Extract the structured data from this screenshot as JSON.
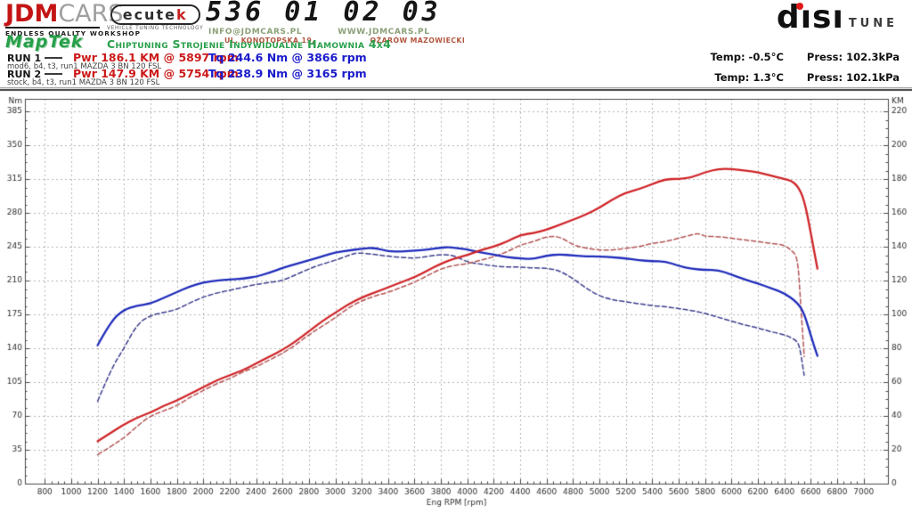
{
  "header": {
    "brand_red": "JDM",
    "brand_gray": "CARS",
    "brand_tagline": "ENDLESS QUALITY WORKSHOP",
    "ecutek_name": "ecutek",
    "ecutek_name_main": "ecute",
    "ecutek_name_k": "k",
    "ecutek_tagline": "VEHICLE TUNING TECHNOLOGY",
    "phone": "536 01 02 03",
    "email": "INFO@JDMCARS.PL",
    "website": "WWW.JDMCARS.PL",
    "address_street": "UL. KONOTOPSKA 19,",
    "address_city": "OŻARÓW MAZOWIECKI",
    "maptek": "MapTek",
    "services": "Chiptuning Strojenie Indywidualne Hamownia 4x4",
    "disi": "dısı",
    "tune": "TUNE"
  },
  "runs": [
    {
      "label": "RUN 1",
      "power": "Pwr 186.1 KM @ 5897 rpm",
      "torque": "Tq 244.6 Nm @ 3866 rpm",
      "description": "mod6, b4, t3, run1 MAZDA 3 BN 120 FSL",
      "temp": "Temp: -0.5°C",
      "press": "Press: 102.3kPa"
    },
    {
      "label": "RUN 2",
      "power": "Pwr 147.9 KM @ 5754 rpm",
      "torque": "Tq 238.9 Nm @ 3165 rpm",
      "description": "stock, b4, t3, run1 MAZDA 3 BN 120 FSL",
      "temp": "Temp: 1.3°C",
      "press": "Press: 102.1kPa"
    }
  ],
  "chart_data": {
    "type": "line",
    "xlabel": "Eng RPM [rpm]",
    "x_min": 650,
    "x_max": 7184,
    "x_tick_min": 800,
    "x_tick_max": 7000,
    "x_tick_step": 200,
    "x_minor_step": 50,
    "left_axis": {
      "label": "Nm",
      "min": 0,
      "max": 385,
      "tick_step": 35,
      "minor_step": 8.75
    },
    "right_axis": {
      "label": "KM",
      "min": 0,
      "max": 220,
      "tick_step": 20,
      "minor_step": 5
    },
    "grid": true,
    "grid_color": "#b4b4b4",
    "frame_color": "#4a4a4a",
    "peaks": {
      "run1_power_km": 186.1,
      "run1_power_rpm": 5897,
      "run1_torque_nm": 244.6,
      "run1_torque_rpm": 3866,
      "run2_power_km": 147.9,
      "run2_power_rpm": 5754,
      "run2_torque_nm": 238.9,
      "run2_torque_rpm": 3165
    },
    "series": [
      {
        "name": "RUN 2 Torque (stock)",
        "axis": "left",
        "unit": "Nm",
        "color": "#3d3d8f",
        "dash": true,
        "width": 1.5,
        "points": [
          [
            1200,
            85
          ],
          [
            1300,
            118
          ],
          [
            1400,
            140
          ],
          [
            1500,
            165
          ],
          [
            1600,
            174
          ],
          [
            1700,
            177
          ],
          [
            1800,
            180
          ],
          [
            1900,
            187
          ],
          [
            2000,
            193
          ],
          [
            2100,
            197
          ],
          [
            2200,
            200
          ],
          [
            2300,
            203
          ],
          [
            2400,
            206
          ],
          [
            2500,
            208
          ],
          [
            2600,
            210
          ],
          [
            2700,
            216
          ],
          [
            2800,
            222
          ],
          [
            2900,
            227
          ],
          [
            3000,
            231
          ],
          [
            3100,
            236
          ],
          [
            3165,
            238.9
          ],
          [
            3300,
            237
          ],
          [
            3400,
            235
          ],
          [
            3500,
            234
          ],
          [
            3600,
            233
          ],
          [
            3700,
            235
          ],
          [
            3800,
            237
          ],
          [
            3900,
            236
          ],
          [
            4000,
            229
          ],
          [
            4100,
            227
          ],
          [
            4200,
            225
          ],
          [
            4300,
            224
          ],
          [
            4400,
            224
          ],
          [
            4500,
            223
          ],
          [
            4600,
            223
          ],
          [
            4700,
            220
          ],
          [
            4800,
            212
          ],
          [
            4900,
            202
          ],
          [
            5000,
            194
          ],
          [
            5100,
            190
          ],
          [
            5200,
            188
          ],
          [
            5300,
            186
          ],
          [
            5400,
            184
          ],
          [
            5500,
            183
          ],
          [
            5600,
            181
          ],
          [
            5700,
            179
          ],
          [
            5800,
            176
          ],
          [
            5900,
            172
          ],
          [
            6000,
            168
          ],
          [
            6100,
            164
          ],
          [
            6200,
            161
          ],
          [
            6300,
            157
          ],
          [
            6400,
            154
          ],
          [
            6450,
            151
          ],
          [
            6500,
            147
          ],
          [
            6520,
            138
          ],
          [
            6550,
            112
          ]
        ]
      },
      {
        "name": "RUN 2 Power (stock)",
        "axis": "right",
        "unit": "KM",
        "color": "#b35353",
        "dash": true,
        "width": 1.5,
        "points": [
          [
            1200,
            17
          ],
          [
            1300,
            22
          ],
          [
            1400,
            27
          ],
          [
            1500,
            34
          ],
          [
            1600,
            40
          ],
          [
            1700,
            43
          ],
          [
            1800,
            46
          ],
          [
            1900,
            51
          ],
          [
            2000,
            55
          ],
          [
            2100,
            59
          ],
          [
            2200,
            62
          ],
          [
            2300,
            66
          ],
          [
            2400,
            69
          ],
          [
            2500,
            73
          ],
          [
            2600,
            77
          ],
          [
            2700,
            82
          ],
          [
            2800,
            88
          ],
          [
            2900,
            93
          ],
          [
            3000,
            98
          ],
          [
            3100,
            104
          ],
          [
            3200,
            108
          ],
          [
            3300,
            111
          ],
          [
            3400,
            113
          ],
          [
            3500,
            116
          ],
          [
            3600,
            119
          ],
          [
            3700,
            123
          ],
          [
            3800,
            127
          ],
          [
            3900,
            129
          ],
          [
            4000,
            130
          ],
          [
            4100,
            132
          ],
          [
            4200,
            134
          ],
          [
            4300,
            137
          ],
          [
            4400,
            141
          ],
          [
            4500,
            143
          ],
          [
            4600,
            146
          ],
          [
            4700,
            146
          ],
          [
            4800,
            141
          ],
          [
            4900,
            139
          ],
          [
            5000,
            138
          ],
          [
            5100,
            138
          ],
          [
            5200,
            139
          ],
          [
            5300,
            140
          ],
          [
            5400,
            142
          ],
          [
            5500,
            143
          ],
          [
            5600,
            145
          ],
          [
            5700,
            147
          ],
          [
            5754,
            147.9
          ],
          [
            5800,
            146
          ],
          [
            5900,
            146
          ],
          [
            6000,
            145
          ],
          [
            6100,
            144
          ],
          [
            6200,
            143
          ],
          [
            6300,
            142
          ],
          [
            6400,
            141
          ],
          [
            6450,
            138
          ],
          [
            6500,
            134
          ],
          [
            6520,
            110
          ],
          [
            6550,
            75
          ]
        ]
      },
      {
        "name": "RUN 1 Torque (mod6)",
        "axis": "left",
        "unit": "Nm",
        "color": "#1f2cba",
        "dash": false,
        "width": 2.3,
        "points": [
          [
            1200,
            143
          ],
          [
            1300,
            168
          ],
          [
            1400,
            180
          ],
          [
            1500,
            184
          ],
          [
            1600,
            186
          ],
          [
            1700,
            192
          ],
          [
            1800,
            198
          ],
          [
            1900,
            204
          ],
          [
            2000,
            208
          ],
          [
            2100,
            210
          ],
          [
            2200,
            211
          ],
          [
            2300,
            212
          ],
          [
            2400,
            214
          ],
          [
            2500,
            218
          ],
          [
            2600,
            223
          ],
          [
            2700,
            227
          ],
          [
            2800,
            231
          ],
          [
            2900,
            235
          ],
          [
            3000,
            239
          ],
          [
            3100,
            241
          ],
          [
            3200,
            243
          ],
          [
            3300,
            244
          ],
          [
            3400,
            240
          ],
          [
            3500,
            240
          ],
          [
            3600,
            241
          ],
          [
            3700,
            242
          ],
          [
            3800,
            244
          ],
          [
            3866,
            244.6
          ],
          [
            3950,
            243
          ],
          [
            4000,
            242
          ],
          [
            4100,
            239
          ],
          [
            4200,
            237
          ],
          [
            4300,
            234
          ],
          [
            4400,
            233
          ],
          [
            4500,
            232
          ],
          [
            4600,
            236
          ],
          [
            4700,
            237
          ],
          [
            4800,
            236
          ],
          [
            4900,
            235
          ],
          [
            5000,
            235
          ],
          [
            5100,
            234
          ],
          [
            5200,
            233
          ],
          [
            5300,
            231
          ],
          [
            5400,
            230
          ],
          [
            5500,
            230
          ],
          [
            5600,
            225
          ],
          [
            5700,
            222
          ],
          [
            5800,
            221
          ],
          [
            5900,
            221
          ],
          [
            6000,
            216
          ],
          [
            6100,
            211
          ],
          [
            6200,
            207
          ],
          [
            6300,
            202
          ],
          [
            6400,
            197
          ],
          [
            6500,
            187
          ],
          [
            6550,
            176
          ],
          [
            6600,
            153
          ],
          [
            6650,
            132
          ]
        ]
      },
      {
        "name": "RUN 1 Power (mod6)",
        "axis": "right",
        "unit": "KM",
        "color": "#cf2428",
        "dash": false,
        "width": 2.3,
        "points": [
          [
            1200,
            25
          ],
          [
            1300,
            30
          ],
          [
            1400,
            35
          ],
          [
            1500,
            39
          ],
          [
            1600,
            42
          ],
          [
            1700,
            46
          ],
          [
            1800,
            49
          ],
          [
            1900,
            53
          ],
          [
            2000,
            57
          ],
          [
            2100,
            61
          ],
          [
            2200,
            64
          ],
          [
            2300,
            67
          ],
          [
            2400,
            71
          ],
          [
            2500,
            75
          ],
          [
            2600,
            79
          ],
          [
            2700,
            84
          ],
          [
            2800,
            90
          ],
          [
            2900,
            96
          ],
          [
            3000,
            101
          ],
          [
            3100,
            106
          ],
          [
            3200,
            110
          ],
          [
            3300,
            113
          ],
          [
            3400,
            116
          ],
          [
            3500,
            119
          ],
          [
            3600,
            122
          ],
          [
            3700,
            126
          ],
          [
            3800,
            130
          ],
          [
            3900,
            133
          ],
          [
            4000,
            135
          ],
          [
            4100,
            138
          ],
          [
            4200,
            140
          ],
          [
            4300,
            143
          ],
          [
            4400,
            147
          ],
          [
            4500,
            148
          ],
          [
            4600,
            150
          ],
          [
            4700,
            153
          ],
          [
            4800,
            156
          ],
          [
            4900,
            159
          ],
          [
            5000,
            163
          ],
          [
            5100,
            168
          ],
          [
            5200,
            172
          ],
          [
            5300,
            174
          ],
          [
            5400,
            177
          ],
          [
            5500,
            180
          ],
          [
            5600,
            180
          ],
          [
            5700,
            181
          ],
          [
            5800,
            184
          ],
          [
            5900,
            186
          ],
          [
            6000,
            186
          ],
          [
            6100,
            185
          ],
          [
            6200,
            184
          ],
          [
            6300,
            182
          ],
          [
            6400,
            180
          ],
          [
            6450,
            179
          ],
          [
            6500,
            176
          ],
          [
            6550,
            168
          ],
          [
            6600,
            148
          ],
          [
            6650,
            127
          ]
        ]
      }
    ]
  }
}
